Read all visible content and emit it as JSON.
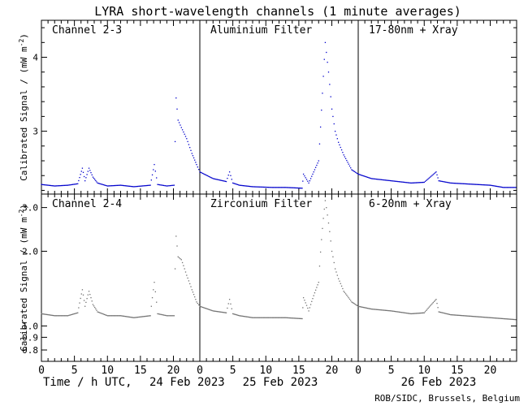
{
  "title": "LYRA short-wavelength channels (1 minute averages)",
  "credit": "ROB/SIDC, Brussels, Belgium",
  "xaxis": {
    "label_prefix": "Time / h UTC,",
    "days": [
      "24 Feb 2023",
      "25 Feb 2023",
      "26 Feb 2023"
    ],
    "tick_labels": [
      "0",
      "5",
      "10",
      "15",
      "20"
    ],
    "xlim": [
      0,
      72
    ]
  },
  "colors": {
    "top": "#0000cc",
    "bottom": "#707070",
    "axes": "#000000"
  },
  "rows": [
    {
      "ylabel": "Calibrated Signal / (mW m",
      "ylabel_sup": "-2",
      "ylabel_end": ")",
      "ylim": [
        2.15,
        4.5
      ],
      "yticks_major": [
        3,
        4
      ],
      "ytick_labels": [
        "3",
        "4"
      ],
      "yticks_minor": [
        2.2,
        2.4,
        2.6,
        2.8,
        3.2,
        3.4,
        3.6,
        3.8,
        4.2,
        4.4
      ],
      "panels": [
        "Channel 2-3",
        "Aluminium Filter",
        "17-80nm + Xray"
      ]
    },
    {
      "ylabel": "Calibrated Signal / (mW m",
      "ylabel_sup": "-2",
      "ylabel_end": ")",
      "ylim": [
        0.72,
        3.4
      ],
      "log": true,
      "yticks_major": [
        0.8,
        0.9,
        1.0,
        2.0,
        3.0
      ],
      "ytick_labels": [
        "0.8",
        "0.9",
        "1.0",
        "2.0",
        "3.0"
      ],
      "panels": [
        "Channel 2-4",
        "Zirconium Filter",
        "6-20nm + Xray"
      ]
    }
  ],
  "chart_data": [
    {
      "type": "scatter",
      "title": "LYRA short-wavelength channels (1 minute averages)",
      "xlabel": "Time / h UTC, 24 Feb 2023 – 26 Feb 2023",
      "ylabel": "Calibrated Signal / (mW m-2)",
      "ylim": [
        2.15,
        4.5
      ],
      "series": [
        {
          "name": "Channel 2-3 / Aluminium Filter / 17-80nm + Xray",
          "x": [
            0,
            2,
            4,
            5.5,
            6.2,
            6.6,
            7.2,
            7.8,
            8.5,
            10,
            12,
            14,
            16.5,
            17.1,
            17.6,
            19,
            20.1,
            20.4,
            20.7,
            21.2,
            22,
            22.8,
            23.5,
            24,
            26,
            28,
            28.5,
            29,
            30,
            32,
            35,
            37,
            39.5,
            39.7,
            40.5,
            42,
            43,
            43.5,
            44,
            44.5,
            45,
            45.8,
            47,
            48,
            50,
            53,
            56,
            58,
            59.8,
            60.2,
            62,
            64,
            66,
            68,
            70,
            72
          ],
          "y": [
            2.28,
            2.26,
            2.27,
            2.29,
            2.5,
            2.33,
            2.5,
            2.38,
            2.3,
            2.26,
            2.27,
            2.25,
            2.27,
            2.55,
            2.28,
            2.26,
            2.27,
            3.45,
            3.15,
            3.05,
            2.9,
            2.7,
            2.55,
            2.45,
            2.36,
            2.32,
            2.45,
            2.3,
            2.27,
            2.25,
            2.24,
            2.24,
            2.23,
            2.42,
            2.3,
            2.6,
            4.2,
            3.8,
            3.3,
            3.0,
            2.85,
            2.68,
            2.48,
            2.42,
            2.36,
            2.33,
            2.3,
            2.31,
            2.45,
            2.33,
            2.3,
            2.29,
            2.28,
            2.27,
            2.24,
            2.24
          ]
        }
      ]
    },
    {
      "type": "scatter",
      "title": "",
      "xlabel": "Time / h UTC, 24 Feb 2023 – 26 Feb 2023",
      "ylabel": "Calibrated Signal / (mW m-2)",
      "ylim": [
        0.72,
        3.4
      ],
      "log_scale": true,
      "series": [
        {
          "name": "Channel 2-4 / Zirconium Filter / 6-20nm + Xray",
          "x": [
            0,
            2,
            4,
            5.5,
            6.2,
            6.6,
            7.2,
            7.8,
            8.5,
            10,
            12,
            14,
            16.5,
            17.1,
            17.6,
            19,
            20.1,
            20.4,
            20.7,
            21.2,
            22,
            22.8,
            23.5,
            24,
            26,
            28,
            28.5,
            29,
            30,
            32,
            35,
            37,
            39.5,
            39.7,
            40.5,
            42,
            43,
            43.5,
            44,
            44.5,
            45,
            45.8,
            47,
            48,
            50,
            53,
            56,
            58,
            59.8,
            60.2,
            62,
            64,
            66,
            68,
            70,
            72
          ],
          "y": [
            1.12,
            1.1,
            1.1,
            1.13,
            1.4,
            1.2,
            1.38,
            1.22,
            1.14,
            1.1,
            1.1,
            1.08,
            1.1,
            1.5,
            1.12,
            1.1,
            1.1,
            2.3,
            1.9,
            1.85,
            1.6,
            1.4,
            1.25,
            1.2,
            1.15,
            1.13,
            1.28,
            1.12,
            1.1,
            1.08,
            1.08,
            1.08,
            1.07,
            1.3,
            1.15,
            1.5,
            3.2,
            2.6,
            2.0,
            1.7,
            1.55,
            1.38,
            1.25,
            1.2,
            1.17,
            1.15,
            1.12,
            1.13,
            1.28,
            1.14,
            1.11,
            1.1,
            1.09,
            1.08,
            1.07,
            1.06
          ]
        }
      ]
    }
  ]
}
